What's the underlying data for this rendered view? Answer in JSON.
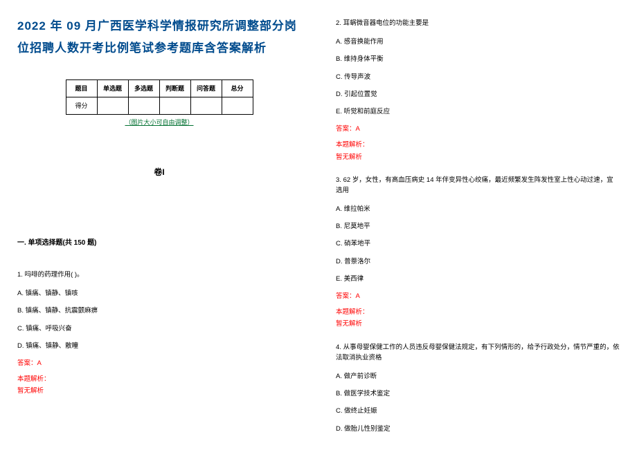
{
  "title": "2022 年 09 月广西医学科学情报研究所调整部分岗位招聘人数开考比例笔试参考题库含答案解析",
  "table": {
    "headers": [
      "题目",
      "单选题",
      "多选题",
      "判断题",
      "问答题",
      "总分"
    ],
    "row_label": "得分"
  },
  "table_caption": "（图片大小可自由调整）",
  "volume_label": "卷I",
  "section_title": "一. 单项选择题(共 150 题)",
  "left_questions": [
    {
      "num": "1.",
      "text": "吗啡的药理作用(  )。",
      "options": [
        "A. 镇痛、镇静、镇咳",
        "B. 镇痛、镇静、抗震颤麻痹",
        "C. 镇痛、呼吸兴奋",
        "D. 镇痛、镇静、散瞳"
      ],
      "answer": "答案：A",
      "analysis_label": "本题解析：",
      "analysis": "暂无解析"
    }
  ],
  "right_questions": [
    {
      "num": "2.",
      "text": "耳蜗微音器电位的功能主要是",
      "options": [
        "A. 感音换能作用",
        "B. 维持身体平衡",
        "C. 传导声波",
        "D. 引起位置觉",
        "E. 听觉和前庭反应"
      ],
      "answer": "答案：A",
      "analysis_label": "本题解析：",
      "analysis": "暂无解析"
    },
    {
      "num": "3.",
      "text": "62 岁，女性，有高血压病史 14 年伴变异性心绞痛，最近频繁发生阵发性室上性心动过速，宜选用",
      "options": [
        "A. 维拉帕米",
        "B. 尼莫地平",
        "C. 硝苯地平",
        "D. 普萘洛尔",
        "E. 美西律"
      ],
      "answer": "答案：A",
      "analysis_label": "本题解析：",
      "analysis": "暂无解析"
    },
    {
      "num": "4.",
      "text": "从事母婴保健工作的人员违反母婴保健法规定，有下列情形的，给予行政处分，情节严重的，依法取消执业资格",
      "options": [
        "A. 做产前诊断",
        "B. 做医学技术鉴定",
        "C. 做终止妊娠",
        "D. 做胎儿性别鉴定"
      ],
      "answer": "",
      "analysis_label": "",
      "analysis": ""
    }
  ]
}
